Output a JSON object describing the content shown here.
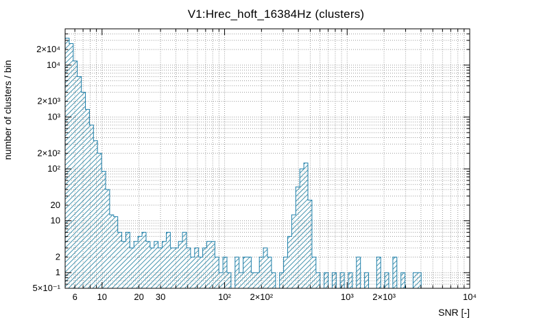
{
  "style": {
    "background": "#ffffff",
    "line_color": "#1c7ea9",
    "hatch_color": "#4493ae",
    "grid_color": "#9a9a9a",
    "frame_color": "#000000",
    "text_color": "#000000"
  },
  "chart_data": {
    "type": "bar",
    "subtype": "histogram-steps",
    "title": "V1:Hrec_hoft_16384Hz (clusters)",
    "xlabel": "SNR [-]",
    "ylabel": "number of clusters / bin",
    "xscale": "log",
    "yscale": "log",
    "xlim": [
      5,
      10000
    ],
    "ylim": [
      0.5,
      50000
    ],
    "grid": true,
    "legend": "none",
    "x_ticks": [
      {
        "v": 6,
        "t": "6"
      },
      {
        "v": 10,
        "t": "10"
      },
      {
        "v": 20,
        "t": "20"
      },
      {
        "v": 30,
        "t": "30"
      },
      {
        "v": 100,
        "t": "10²"
      },
      {
        "v": 200,
        "t": "2×10²"
      },
      {
        "v": 1000,
        "t": "10³"
      },
      {
        "v": 2000,
        "t": "2×10³"
      },
      {
        "v": 10000,
        "t": "10⁴"
      }
    ],
    "y_ticks": [
      {
        "v": 0.5,
        "t": "5×10⁻¹"
      },
      {
        "v": 1,
        "t": "1"
      },
      {
        "v": 2,
        "t": "2"
      },
      {
        "v": 10,
        "t": "10"
      },
      {
        "v": 20,
        "t": "20"
      },
      {
        "v": 100,
        "t": "10²"
      },
      {
        "v": 200,
        "t": "2×10²"
      },
      {
        "v": 1000,
        "t": "10³"
      },
      {
        "v": 2000,
        "t": "2×10³"
      },
      {
        "v": 10000,
        "t": "10⁴"
      },
      {
        "v": 20000,
        "t": "2×10⁴"
      }
    ],
    "bins": {
      "spacing": "log",
      "nbins": 100,
      "xmin": 5,
      "xmax": 10000
    },
    "counts": [
      33000,
      26000,
      12000,
      6000,
      3000,
      1400,
      700,
      350,
      200,
      90,
      40,
      13,
      12,
      6,
      4,
      6,
      3,
      4,
      5,
      6,
      4,
      3,
      4,
      3,
      4,
      6,
      3,
      3,
      4,
      6,
      3,
      2,
      3,
      2,
      3,
      4,
      4,
      2,
      1,
      2,
      1,
      0,
      2,
      1,
      2,
      2,
      1,
      1,
      2,
      3,
      2,
      1,
      0,
      1,
      2,
      5,
      13,
      45,
      100,
      130,
      25,
      2,
      1,
      0,
      1,
      0,
      1,
      0,
      1,
      0,
      1,
      0,
      2,
      0,
      1,
      0,
      0,
      2,
      0,
      1,
      0,
      2,
      0,
      1,
      0,
      0,
      1,
      1,
      0,
      0,
      0,
      0,
      0,
      0,
      0,
      0,
      0,
      0,
      0,
      0
    ]
  }
}
